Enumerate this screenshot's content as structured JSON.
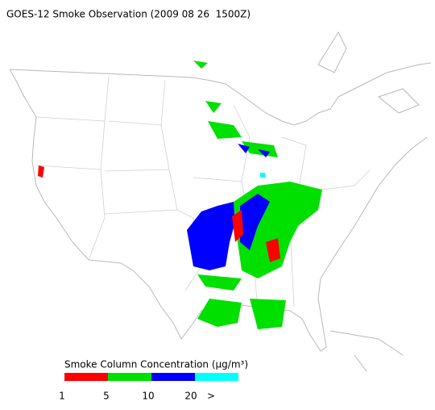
{
  "title": "GOES-12 Smoke Observation (2009 08 26  1500Z)",
  "legend": {
    "title": "Smoke Column Concentration (μg/m³)",
    "colors": [
      "#ff0000",
      "#00e000",
      "#0000ff",
      "#00ffff"
    ],
    "labels": [
      "1",
      "5",
      "10",
      "20",
      ">"
    ]
  }
}
